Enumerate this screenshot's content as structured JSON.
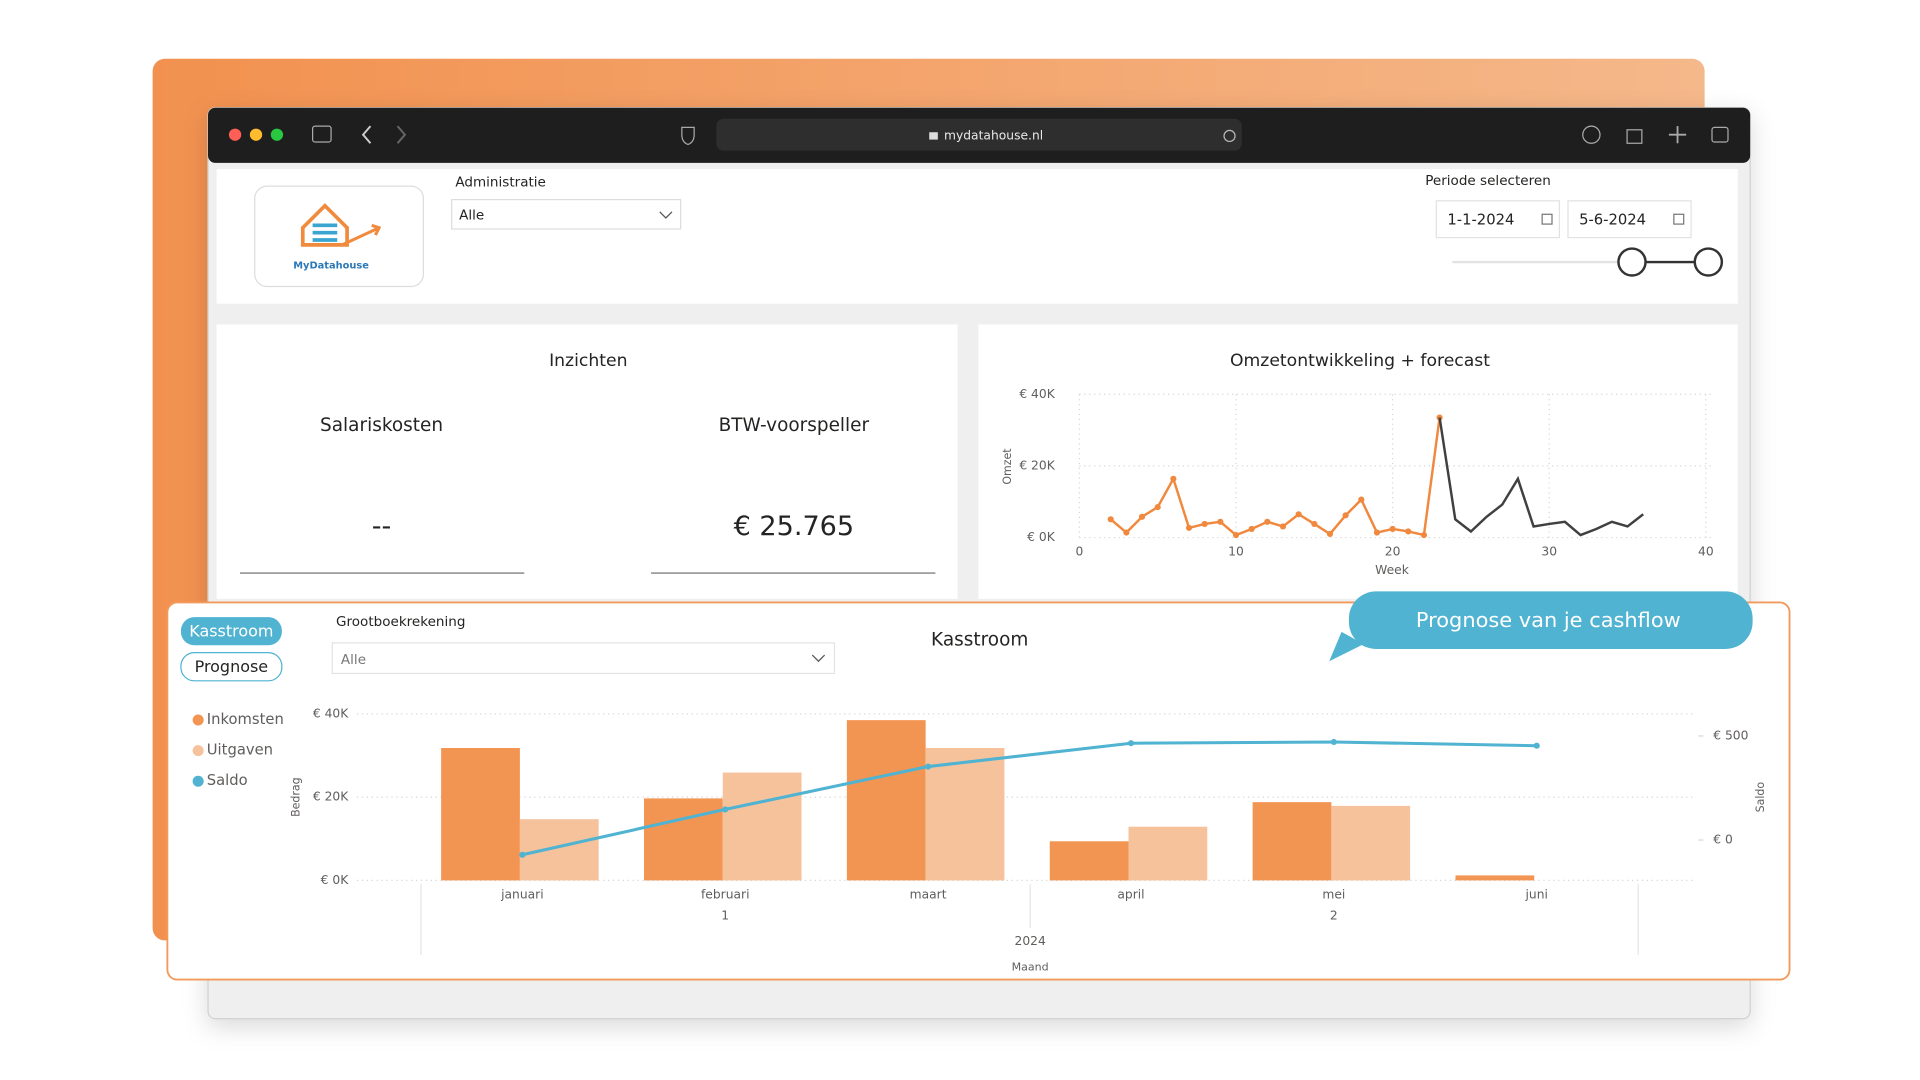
{
  "browser": {
    "url": "mydatahouse.nl"
  },
  "header": {
    "logo_text": "MyDatahouse",
    "administratie_label": "Administratie",
    "administratie_value": "Alle",
    "periode_label": "Periode selecteren",
    "start_date": "1-1-2024",
    "end_date": "5-6-2024"
  },
  "insights": {
    "title": "Inzichten",
    "cards": [
      {
        "label": "Salariskosten",
        "value": "--"
      },
      {
        "label": "BTW-voorspeller",
        "value": "€ 25.765"
      }
    ]
  },
  "kasstroom": {
    "buttons": [
      "Kasstroom",
      "Prognose"
    ],
    "filter_label": "Grootboekrekening",
    "filter_value": "Alle"
  },
  "callout": "Prognose van je cashflow",
  "chart_data": [
    {
      "type": "line",
      "title": "Omzetontwikkeling + forecast",
      "x_label": "Week",
      "y_label": "Omzet",
      "x": [
        2,
        3,
        4,
        5,
        6,
        7,
        8,
        9,
        10,
        11,
        12,
        13,
        14,
        15,
        16,
        17,
        18,
        19,
        20,
        21,
        22,
        23,
        24,
        25,
        26,
        27,
        28,
        29,
        30,
        31,
        32,
        33,
        34,
        35,
        36
      ],
      "series": [
        {
          "color": "#f0883e",
          "values": [
            5100,
            1400,
            5800,
            8500,
            16400,
            2700,
            3800,
            4400,
            700,
            2400,
            4400,
            3100,
            6500,
            3800,
            1000,
            6200,
            10600,
            1400,
            2400,
            1700,
            700,
            33500,
            null,
            null,
            null,
            null,
            null,
            null,
            null,
            null,
            null,
            null,
            null,
            null,
            null
          ]
        },
        {
          "color": "#404040",
          "values": [
            null,
            null,
            null,
            null,
            null,
            null,
            null,
            null,
            null,
            null,
            null,
            null,
            null,
            null,
            null,
            null,
            null,
            null,
            null,
            null,
            null,
            33500,
            5100,
            1700,
            5800,
            9200,
            16400,
            3100,
            3800,
            4400,
            700,
            2400,
            4400,
            3100,
            6500
          ]
        }
      ],
      "xlim": [
        0,
        40
      ],
      "xticks": [
        0,
        10,
        20,
        30,
        40
      ],
      "ylim": [
        0,
        40000
      ],
      "yticks": [
        {
          "value": 0,
          "label": "€ 0K"
        },
        {
          "value": 20000,
          "label": "€ 20K"
        },
        {
          "value": 40000,
          "label": "€ 40K"
        }
      ],
      "grid": true
    },
    {
      "type": "combo",
      "title": "Kasstroom",
      "x_label": "Maand",
      "y_label": "Bedrag",
      "y2_label": "Saldo",
      "categories": [
        "januari",
        "februari",
        "maart",
        "april",
        "mei",
        "juni"
      ],
      "x_groups": [
        "1",
        "2"
      ],
      "x_super": "2024",
      "series": [
        {
          "name": "Inkomsten",
          "color": "#f39552",
          "values": [
            31800,
            19700,
            38500,
            9400,
            18800,
            1200
          ]
        },
        {
          "name": "Uitgaven",
          "color": "#f5c29c",
          "values": [
            14700,
            25900,
            31800,
            12900,
            17900,
            null
          ]
        },
        {
          "name": "Saldo",
          "color": "#4fb3d1",
          "axis": "y2",
          "values": [
            -71,
            147,
            353,
            465,
            471,
            453
          ]
        }
      ],
      "ylim": [
        0,
        40000
      ],
      "yticks": [
        {
          "value": 0,
          "label": "€ 0K"
        },
        {
          "value": 20000,
          "label": "€ 20K"
        },
        {
          "value": 40000,
          "label": "€ 40K"
        }
      ],
      "y2lim": [
        -194,
        606
      ],
      "y2ticks": [
        {
          "value": 0,
          "label": "€ 0"
        },
        {
          "value": 500,
          "label": "€ 500"
        }
      ],
      "grid": true,
      "legend": "left"
    }
  ]
}
